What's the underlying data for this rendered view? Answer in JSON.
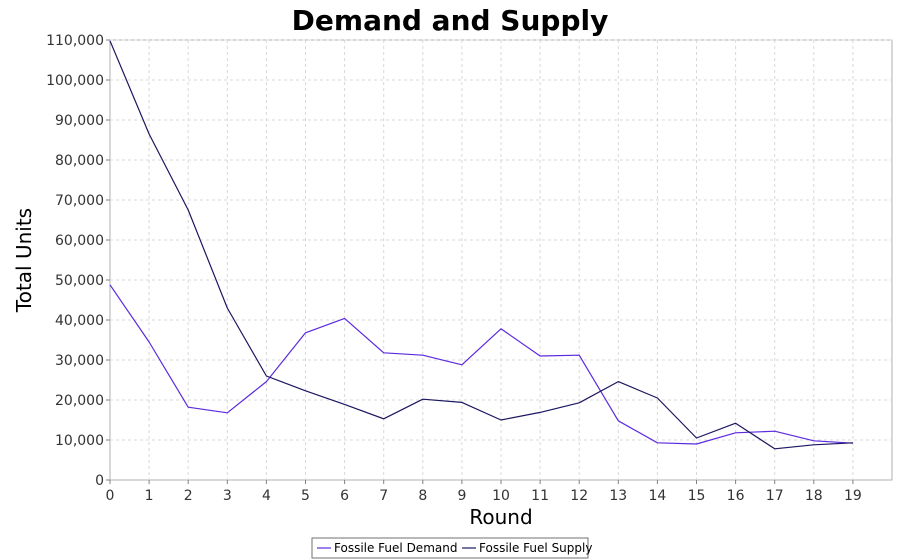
{
  "chart_data": {
    "type": "line",
    "title": "Demand and Supply",
    "xlabel": "Round",
    "ylabel": "Total Units",
    "x": [
      0,
      1,
      2,
      3,
      4,
      5,
      6,
      7,
      8,
      9,
      10,
      11,
      12,
      13,
      14,
      15,
      16,
      17,
      18,
      19
    ],
    "xlim": [
      0,
      20
    ],
    "ylim": [
      0,
      110000
    ],
    "x_ticks": [
      "0",
      "1",
      "2",
      "3",
      "4",
      "5",
      "6",
      "7",
      "8",
      "9",
      "10",
      "11",
      "12",
      "13",
      "14",
      "15",
      "16",
      "17",
      "18",
      "19"
    ],
    "y_ticks": [
      0,
      10000,
      20000,
      30000,
      40000,
      50000,
      60000,
      70000,
      80000,
      90000,
      100000,
      110000
    ],
    "y_tick_labels": [
      "0",
      "10,000",
      "20,000",
      "30,000",
      "40,000",
      "50,000",
      "60,000",
      "70,000",
      "80,000",
      "90,000",
      "100,000",
      "110,000"
    ],
    "grid": true,
    "legend_position": "bottom-center",
    "series": [
      {
        "name": "Fossile Fuel Demand",
        "color": "#5b2ae0",
        "values": [
          48800,
          34500,
          18200,
          16800,
          24600,
          36800,
          40400,
          31800,
          31200,
          28800,
          37800,
          31000,
          31200,
          14800,
          9300,
          9000,
          11800,
          12200,
          9800,
          9200
        ]
      },
      {
        "name": "Fossile Fuel Supply",
        "color": "#1a1660",
        "values": [
          109800,
          86500,
          67500,
          43000,
          26000,
          22300,
          18900,
          15300,
          20200,
          19400,
          15000,
          16900,
          19300,
          24600,
          20500,
          10500,
          14200,
          7800,
          8800,
          9300
        ]
      }
    ]
  }
}
